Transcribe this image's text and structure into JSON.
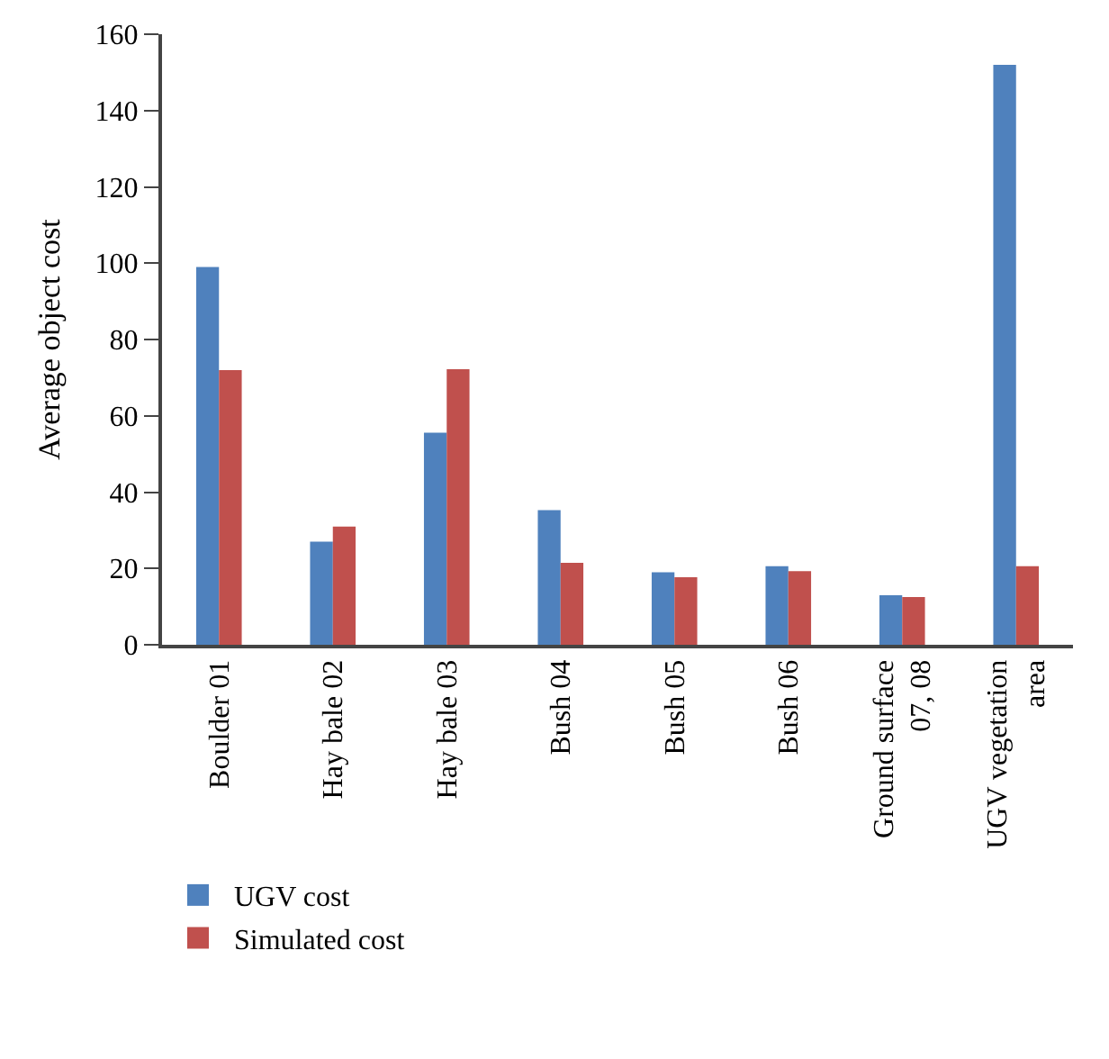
{
  "chart_data": {
    "type": "bar",
    "ylabel": "Average object cost",
    "categories": [
      "Boulder 01",
      "Hay bale 02",
      "Hay bale 03",
      "Bush 04",
      "Bush 05",
      "Bush 06",
      "Ground surface\n07, 08",
      "UGV vegetation\narea"
    ],
    "series": [
      {
        "name": "UGV cost",
        "color": "#4f81bd",
        "values": [
          99,
          27,
          55.6,
          35.3,
          19,
          20.6,
          13,
          152
        ]
      },
      {
        "name": "Simulated cost",
        "color": "#c0504d",
        "values": [
          72,
          31,
          72.2,
          21.5,
          17.7,
          19.3,
          12.5,
          20.6
        ]
      }
    ],
    "ylim": [
      0,
      160
    ],
    "yticks": [
      0,
      20,
      40,
      60,
      80,
      100,
      120,
      140,
      160
    ],
    "legend": "bottom"
  }
}
